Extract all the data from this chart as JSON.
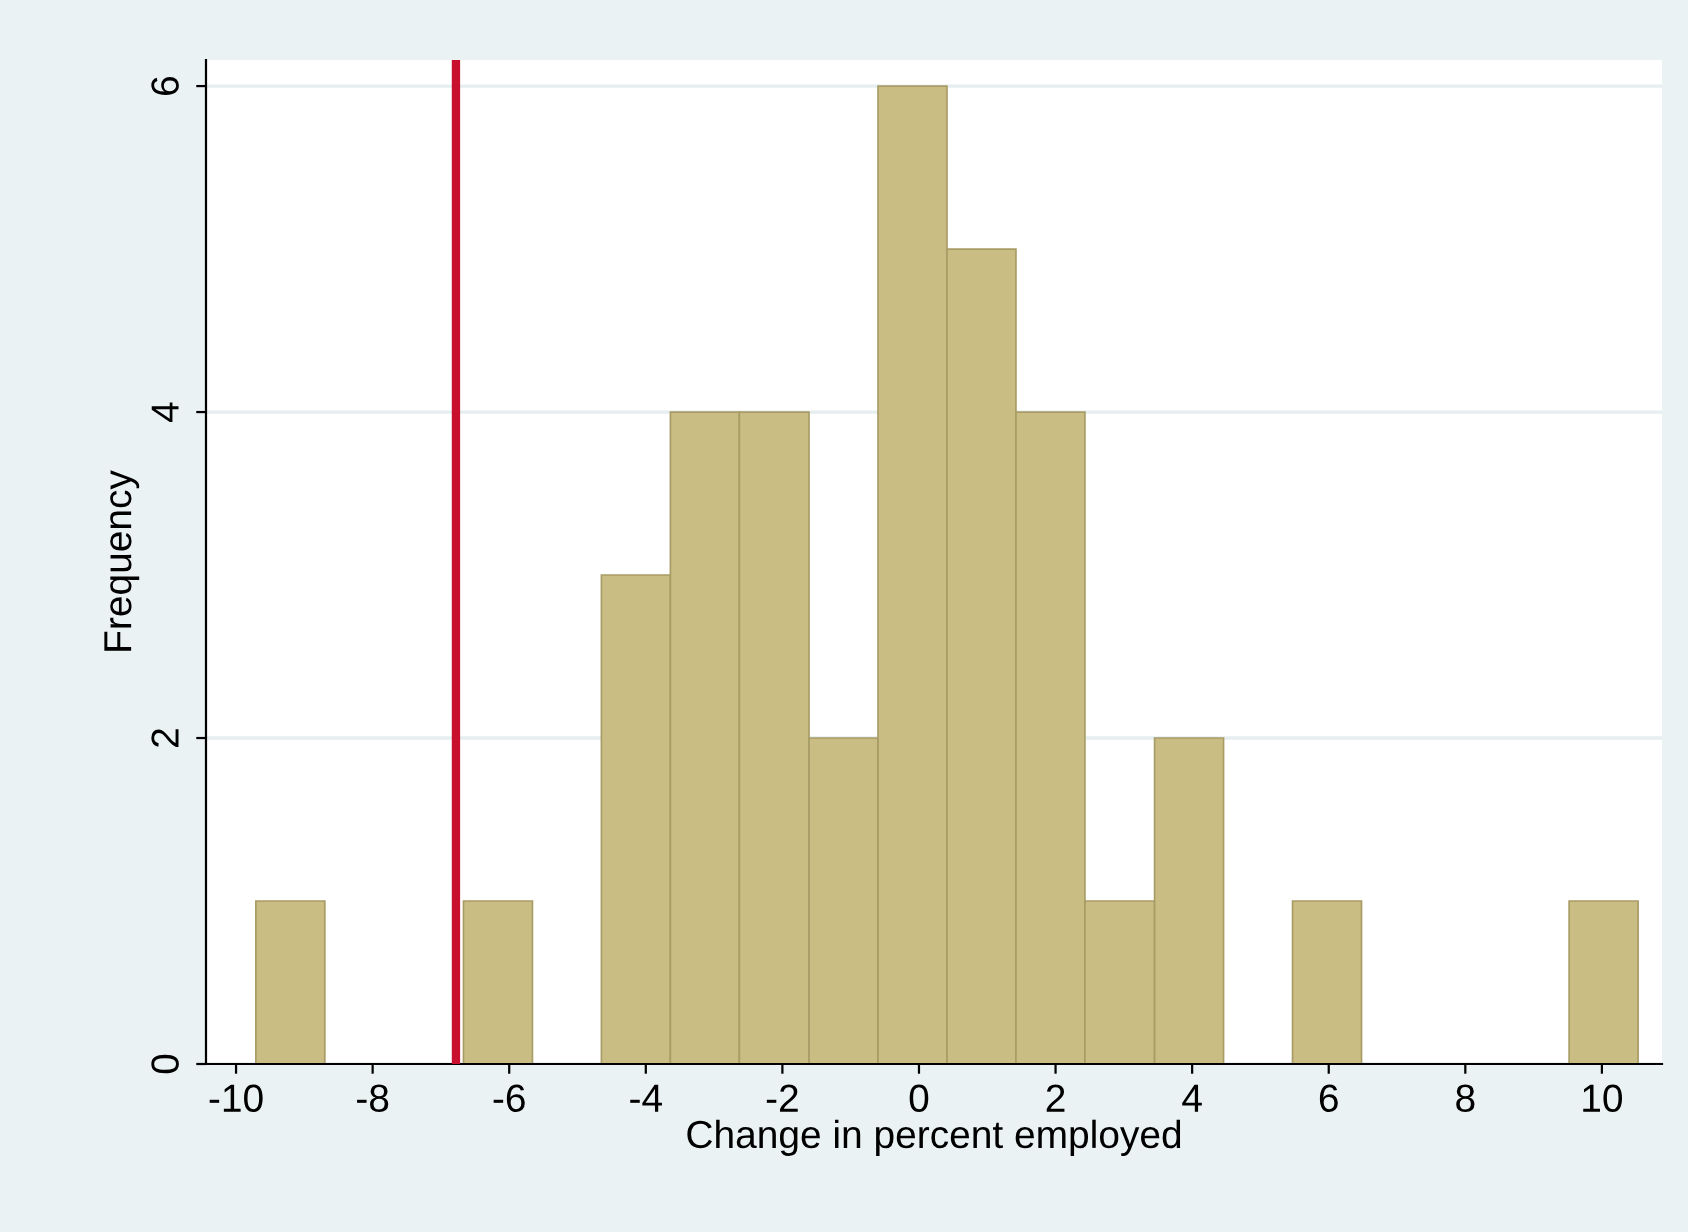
{
  "chart_data": {
    "type": "histogram",
    "xlabel": "Change in percent employed",
    "ylabel": "Frequency",
    "bins": [
      -9.71,
      -8.7,
      -6.67,
      -5.66,
      -4.65,
      -3.64,
      -2.63,
      -1.61,
      -0.6,
      0.41,
      1.42,
      2.43,
      3.45,
      4.46,
      5.47,
      6.48,
      9.52,
      10.53
    ],
    "values": [
      1,
      0,
      1,
      0,
      3,
      4,
      4,
      2,
      6,
      5,
      4,
      1,
      2,
      0,
      1,
      0,
      1
    ],
    "color": "#c9bd83",
    "xlim": [
      -10.44,
      10.88
    ],
    "xticks": [
      -10,
      -8,
      -6,
      -4,
      -2,
      0,
      2,
      4,
      6,
      8,
      10
    ],
    "ylim": [
      0,
      6.16
    ],
    "yticks": [
      0,
      2,
      4,
      6
    ],
    "grid": "y",
    "ref_lines": [
      {
        "axis": "x",
        "value": -6.78,
        "color": "#c8102e"
      }
    ]
  }
}
